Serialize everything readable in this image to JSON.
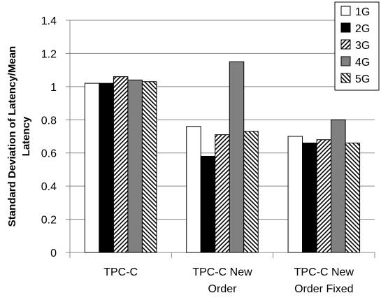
{
  "chart_data": {
    "type": "bar",
    "categories": [
      [
        "TPC-C"
      ],
      [
        "TPC-C New",
        "Order"
      ],
      [
        "TPC-C New",
        "Order Fixed"
      ]
    ],
    "series": [
      {
        "name": "1G",
        "values": [
          1.02,
          0.76,
          0.7
        ],
        "fill": "#ffffff",
        "pattern": "none"
      },
      {
        "name": "2G",
        "values": [
          1.02,
          0.58,
          0.66
        ],
        "fill": "#000000",
        "pattern": "none"
      },
      {
        "name": "3G",
        "values": [
          1.06,
          0.71,
          0.68
        ],
        "fill": "#ffffff",
        "pattern": "forward-diagonal"
      },
      {
        "name": "4G",
        "values": [
          1.04,
          1.15,
          0.8
        ],
        "fill": "#808080",
        "pattern": "none"
      },
      {
        "name": "5G",
        "values": [
          1.03,
          0.73,
          0.66
        ],
        "fill": "#ffffff",
        "pattern": "back-diagonal"
      }
    ],
    "ylabel": [
      "Standard Deviation of Latency/Mean",
      "Latency"
    ],
    "ylim": [
      0,
      1.4
    ],
    "yticks": [
      "0",
      "0.2",
      "0.4",
      "0.6",
      "0.8",
      "1",
      "1.2",
      "1.4"
    ],
    "grid": "horizontal",
    "legend_position": "top-right"
  }
}
